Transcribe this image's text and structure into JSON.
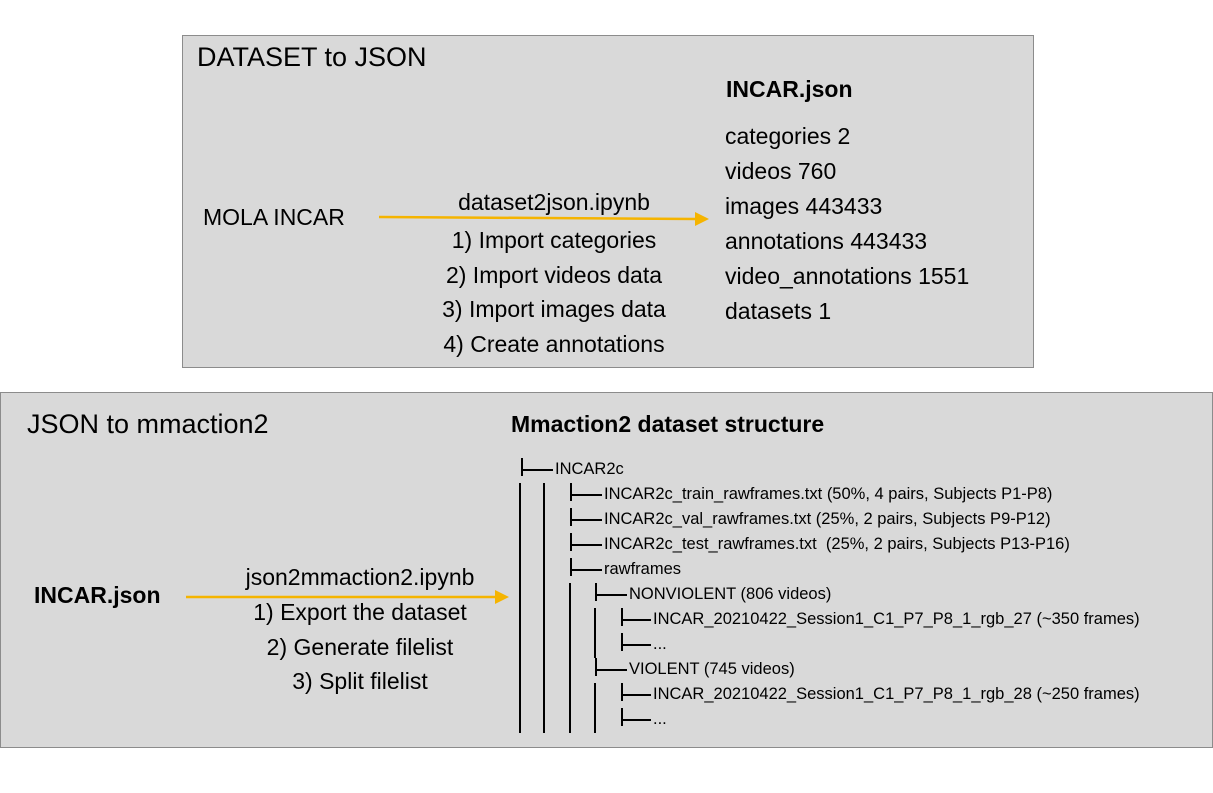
{
  "panel1": {
    "title": "DATASET to JSON",
    "source": "MOLA INCAR",
    "notebook": "dataset2json.ipynb",
    "steps": [
      "1) Import categories",
      "2) Import videos data",
      "3) Import images data",
      "4) Create annotations"
    ],
    "output_title": "INCAR.json",
    "output_items": [
      "categories 2",
      "videos 760",
      "images 443433",
      "annotations 443433",
      "video_annotations 1551",
      "datasets 1"
    ]
  },
  "panel2": {
    "title": "JSON to mmaction2",
    "source": "INCAR.json",
    "notebook": "json2mmaction2.ipynb",
    "steps": [
      "1) Export the dataset",
      "2) Generate filelist",
      "3) Split filelist"
    ],
    "structure_title": "Mmaction2 dataset structure",
    "tree": [
      "INCAR2c",
      "INCAR2c_train_rawframes.txt (50%, 4 pairs, Subjects P1-P8)",
      "INCAR2c_val_rawframes.txt (25%, 2 pairs, Subjects P9-P12)",
      "INCAR2c_test_rawframes.txt  (25%, 2 pairs, Subjects P13-P16)",
      "rawframes",
      "NONVIOLENT (806 videos)",
      "INCAR_20210422_Session1_C1_P7_P8_1_rgb_27 (~350 frames)",
      "...",
      "VIOLENT (745 videos)",
      "INCAR_20210422_Session1_C1_P7_P8_1_rgb_28 (~250 frames)",
      "..."
    ]
  },
  "colors": {
    "panel_bg": "#d9d9d9",
    "panel_border": "#8c8c8c",
    "arrow": "#f5b400"
  }
}
